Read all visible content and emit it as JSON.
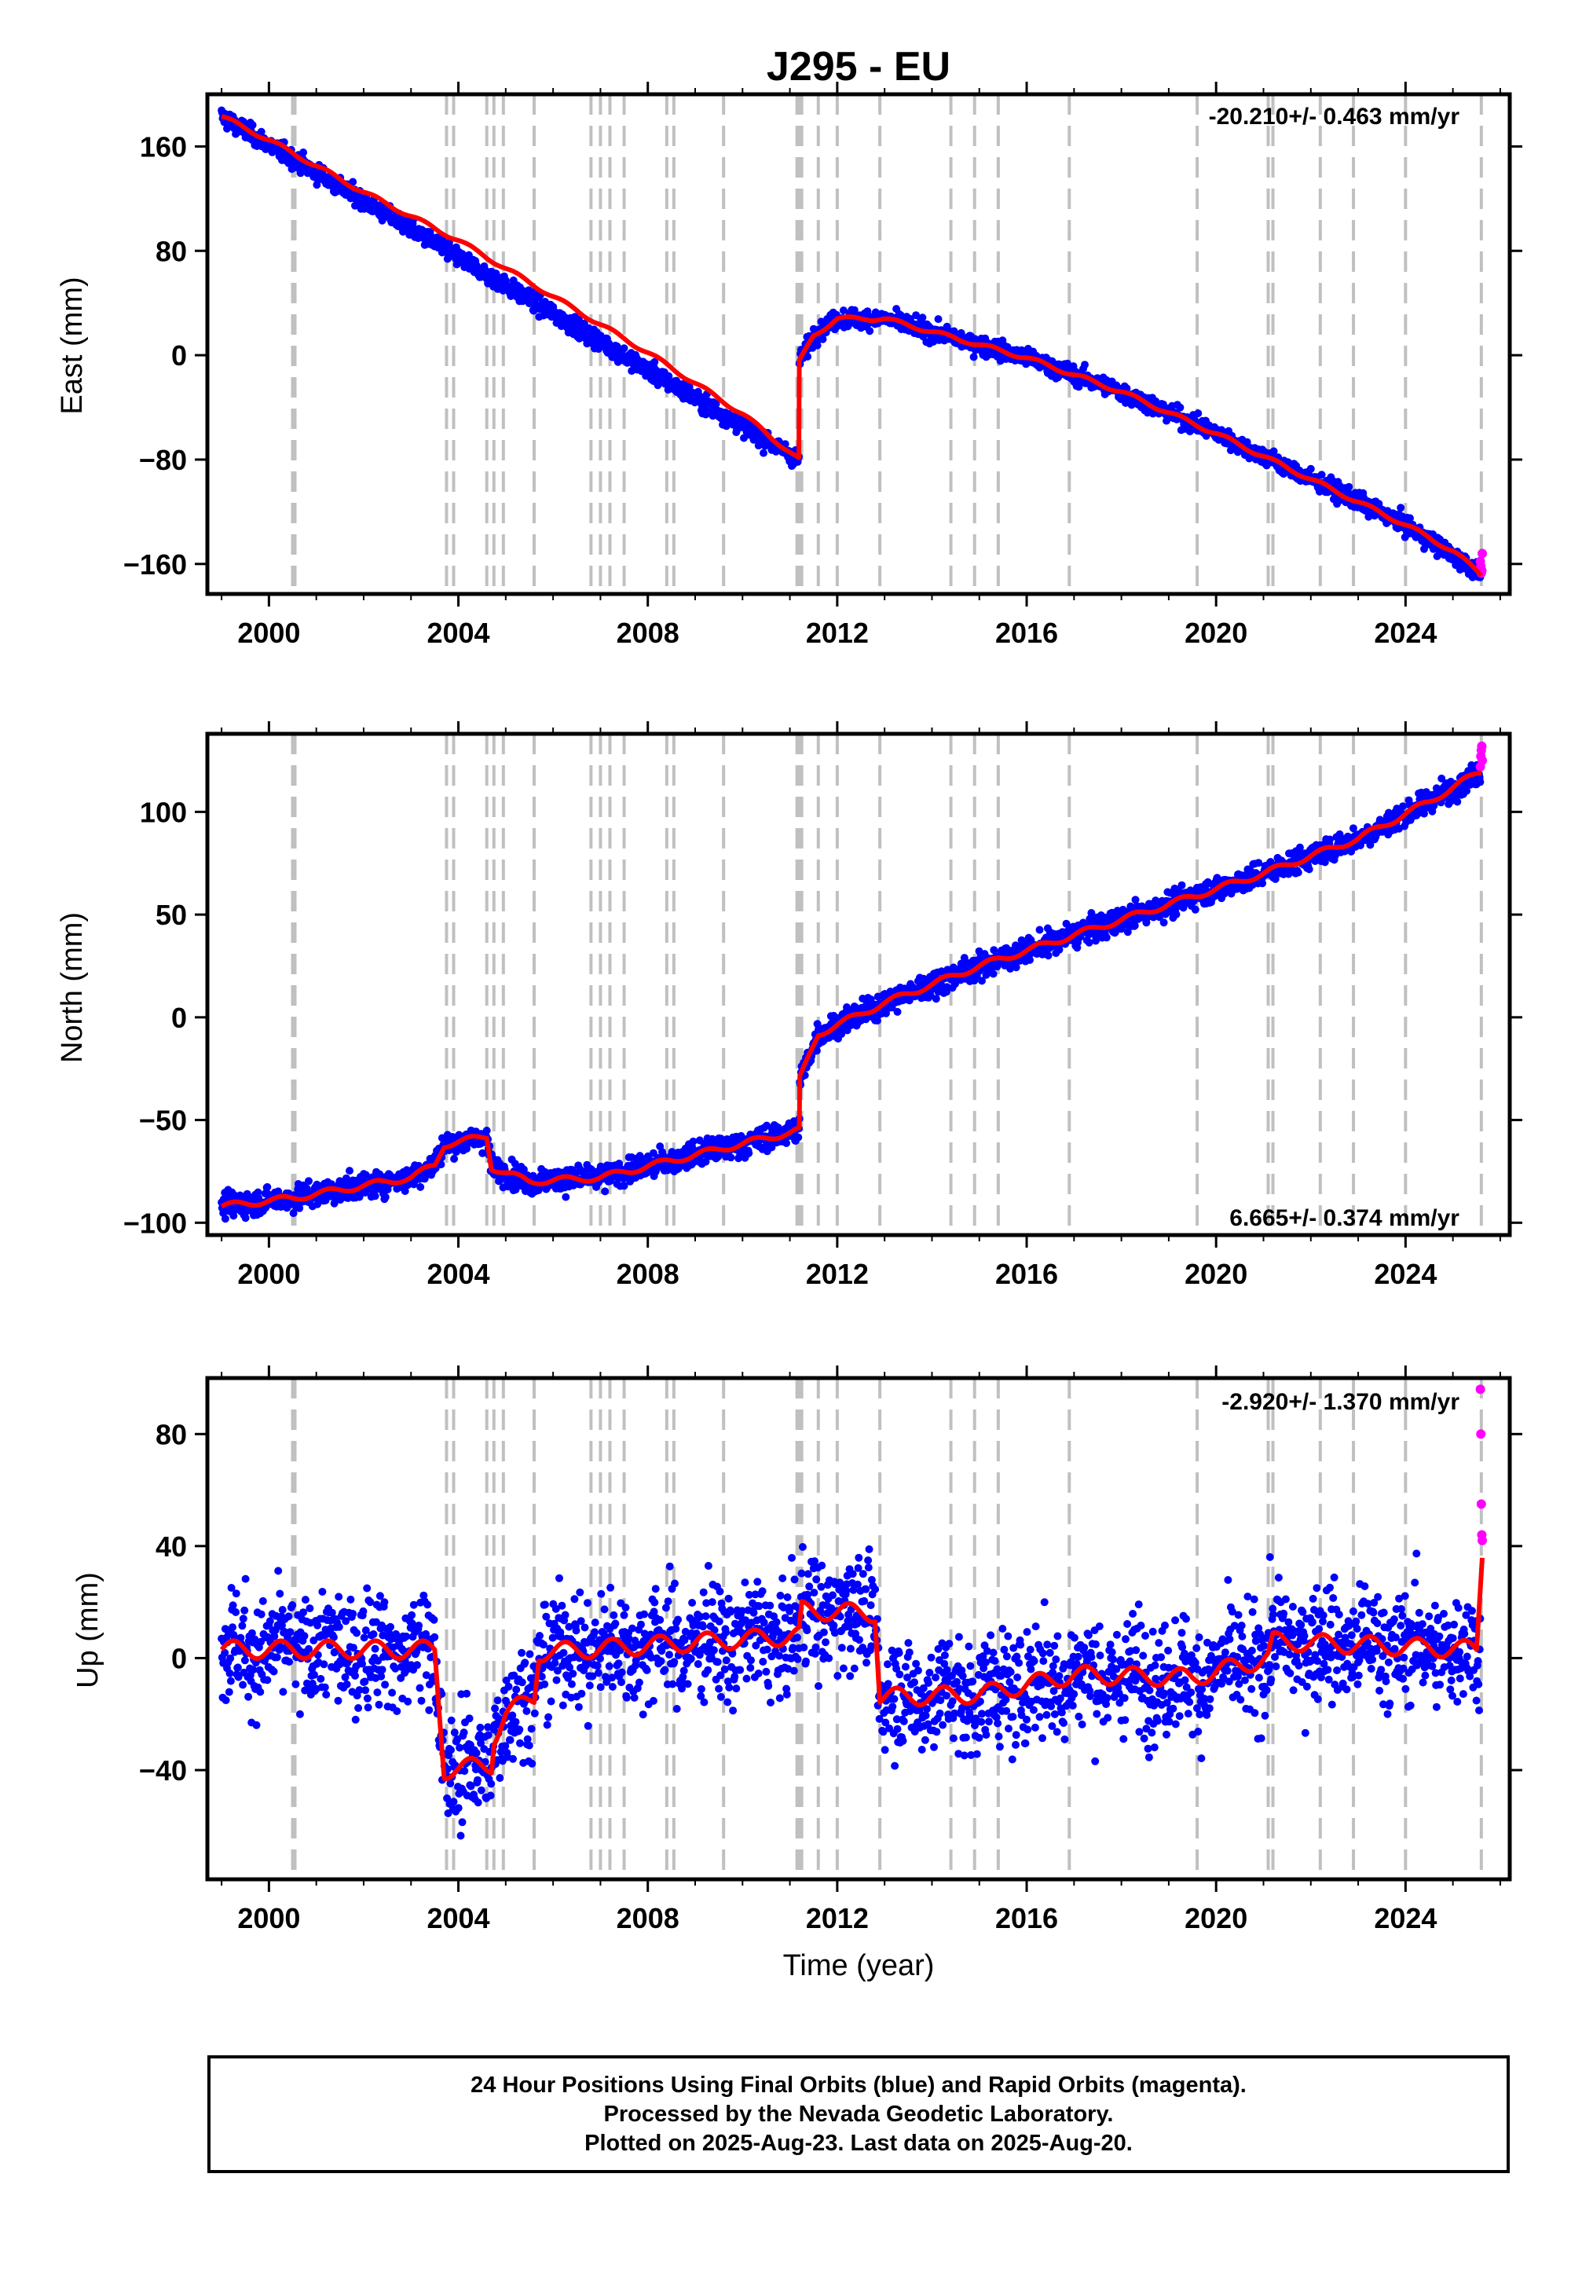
{
  "figure": {
    "title": "J295 - EU",
    "caption": [
      "24 Hour Positions Using Final Orbits (blue) and Rapid Orbits (magenta).",
      "Processed by the Nevada Geodetic Laboratory.",
      "Plotted on 2025-Aug-23. Last data on 2025-Aug-20."
    ]
  },
  "colors": {
    "final_orbits": "#0000ff",
    "rapid_orbits": "#ff00ff",
    "model_fit": "#ff0000",
    "event_lines": "#c0c0c0"
  },
  "chart_data": [
    {
      "type": "scatter",
      "ylabel": "East (mm)",
      "xlabel": "",
      "xlim": [
        1998.7,
        2026.2
      ],
      "ylim": [
        -183,
        200
      ],
      "xticks": [
        2000,
        2004,
        2008,
        2012,
        2016,
        2020,
        2024
      ],
      "yticks": [
        -160,
        -80,
        0,
        80,
        160
      ],
      "ytick_labels": [
        "−160",
        "−80",
        "0",
        "80",
        "160"
      ],
      "rate_label": "-20.210+/- 0.463 mm/yr",
      "rate_position": "top-right",
      "model": [
        [
          1999.0,
          183
        ],
        [
          2000.0,
          165
        ],
        [
          2002.0,
          125
        ],
        [
          2004.0,
          88
        ],
        [
          2006.0,
          45
        ],
        [
          2008.0,
          2
        ],
        [
          2010.0,
          -45
        ],
        [
          2011.19,
          -80
        ],
        [
          2011.2,
          -5
        ],
        [
          2011.5,
          15
        ],
        [
          2012.0,
          28
        ],
        [
          2013.0,
          28
        ],
        [
          2014.0,
          18
        ],
        [
          2016.0,
          -2
        ],
        [
          2018.0,
          -28
        ],
        [
          2020.0,
          -60
        ],
        [
          2022.0,
          -95
        ],
        [
          2024.0,
          -130
        ],
        [
          2025.0,
          -150
        ],
        [
          2025.6,
          -168
        ]
      ],
      "final_series": [
        [
          1999.0,
          183
        ],
        [
          2011.19,
          -80
        ],
        [
          2011.2,
          -5
        ],
        [
          2011.5,
          15
        ],
        [
          2012.0,
          28
        ],
        [
          2013.0,
          28
        ],
        [
          2014.0,
          18
        ],
        [
          2016.0,
          -2
        ],
        [
          2018.0,
          -28
        ],
        [
          2020.0,
          -60
        ],
        [
          2022.0,
          -95
        ],
        [
          2024.0,
          -130
        ],
        [
          2025.6,
          -168
        ]
      ],
      "noise_mm": 3.5,
      "rapid_points": [
        [
          2025.58,
          -158
        ],
        [
          2025.59,
          -162
        ],
        [
          2025.6,
          -167
        ],
        [
          2025.61,
          -165
        ],
        [
          2025.62,
          -152
        ]
      ]
    },
    {
      "type": "scatter",
      "ylabel": "North (mm)",
      "xlabel": "",
      "xlim": [
        1998.7,
        2026.2
      ],
      "ylim": [
        -106,
        138
      ],
      "xticks": [
        2000,
        2004,
        2008,
        2012,
        2016,
        2020,
        2024
      ],
      "yticks": [
        -100,
        -50,
        0,
        50,
        100
      ],
      "ytick_labels": [
        "−100",
        "−50",
        "0",
        "50",
        "100"
      ],
      "rate_label": "6.665+/- 0.374 mm/yr",
      "rate_position": "bottom-right",
      "model": [
        [
          1999.0,
          -92
        ],
        [
          2000.5,
          -88
        ],
        [
          2001.5,
          -84
        ],
        [
          2003.0,
          -78
        ],
        [
          2003.5,
          -72
        ],
        [
          2003.7,
          -62
        ],
        [
          2004.6,
          -58
        ],
        [
          2004.7,
          -73
        ],
        [
          2005.5,
          -80
        ],
        [
          2007.0,
          -78
        ],
        [
          2009.0,
          -67
        ],
        [
          2011.2,
          -55
        ],
        [
          2011.21,
          -30
        ],
        [
          2011.6,
          -8
        ],
        [
          2013.0,
          7
        ],
        [
          2015.0,
          25
        ],
        [
          2017.0,
          40
        ],
        [
          2019.0,
          55
        ],
        [
          2021.0,
          70
        ],
        [
          2023.0,
          87
        ],
        [
          2024.5,
          105
        ],
        [
          2025.6,
          120
        ]
      ],
      "final_series": [
        [
          1999.0,
          -92
        ],
        [
          2000.5,
          -88
        ],
        [
          2001.5,
          -84
        ],
        [
          2003.0,
          -78
        ],
        [
          2003.5,
          -72
        ],
        [
          2003.7,
          -62
        ],
        [
          2004.6,
          -58
        ],
        [
          2004.7,
          -73
        ],
        [
          2005.5,
          -80
        ],
        [
          2007.0,
          -78
        ],
        [
          2009.0,
          -67
        ],
        [
          2011.2,
          -55
        ],
        [
          2011.21,
          -30
        ],
        [
          2011.6,
          -8
        ],
        [
          2013.0,
          7
        ],
        [
          2015.0,
          25
        ],
        [
          2017.0,
          40
        ],
        [
          2019.0,
          55
        ],
        [
          2021.0,
          70
        ],
        [
          2023.0,
          87
        ],
        [
          2024.5,
          105
        ],
        [
          2025.6,
          120
        ]
      ],
      "noise_mm": 3,
      "rapid_points": [
        [
          2025.58,
          122
        ],
        [
          2025.59,
          127
        ],
        [
          2025.6,
          130
        ],
        [
          2025.61,
          132
        ],
        [
          2025.62,
          125
        ]
      ]
    },
    {
      "type": "scatter",
      "ylabel": "Up (mm)",
      "xlabel": "Time (year)",
      "xlim": [
        1998.7,
        2026.2
      ],
      "ylim": [
        -79,
        100
      ],
      "xticks": [
        2000,
        2004,
        2008,
        2012,
        2016,
        2020,
        2024
      ],
      "yticks": [
        -40,
        0,
        40,
        80
      ],
      "ytick_labels": [
        "−40",
        "0",
        "40",
        "80"
      ],
      "rate_label": "-2.920+/- 1.370 mm/yr",
      "rate_position": "top-right",
      "model": [
        [
          1999.0,
          3
        ],
        [
          2003.5,
          3
        ],
        [
          2003.7,
          -40
        ],
        [
          2004.7,
          -38
        ],
        [
          2004.75,
          -28
        ],
        [
          2005.0,
          -20
        ],
        [
          2005.6,
          -14
        ],
        [
          2005.7,
          2
        ],
        [
          2011.2,
          8
        ],
        [
          2011.25,
          17
        ],
        [
          2012.8,
          16
        ],
        [
          2012.9,
          -14
        ],
        [
          2015.0,
          -13
        ],
        [
          2017.0,
          -6
        ],
        [
          2019.5,
          -7
        ],
        [
          2021.1,
          0
        ],
        [
          2021.2,
          6
        ],
        [
          2025.5,
          3
        ],
        [
          2025.62,
          38
        ]
      ],
      "final_series": [
        [
          1999.0,
          3
        ],
        [
          2003.5,
          3
        ],
        [
          2003.7,
          -40
        ],
        [
          2004.7,
          -38
        ],
        [
          2004.75,
          -28
        ],
        [
          2005.0,
          -20
        ],
        [
          2005.6,
          -14
        ],
        [
          2005.7,
          2
        ],
        [
          2011.2,
          8
        ],
        [
          2011.25,
          17
        ],
        [
          2012.8,
          16
        ],
        [
          2012.9,
          -14
        ],
        [
          2015.0,
          -13
        ],
        [
          2017.0,
          -6
        ],
        [
          2019.5,
          -7
        ],
        [
          2021.1,
          0
        ],
        [
          2021.2,
          6
        ],
        [
          2025.5,
          3
        ]
      ],
      "noise_mm": 10,
      "rapid_points": [
        [
          2025.58,
          96
        ],
        [
          2025.59,
          80
        ],
        [
          2025.6,
          55
        ],
        [
          2025.61,
          44
        ],
        [
          2025.62,
          42
        ]
      ]
    }
  ],
  "event_lines_years": [
    2000.5,
    2000.55,
    2003.75,
    2003.9,
    2004.6,
    2004.75,
    2004.95,
    2005.6,
    2006.8,
    2007.0,
    2007.2,
    2007.5,
    2008.4,
    2008.55,
    2009.6,
    2011.15,
    2011.2,
    2011.25,
    2011.6,
    2012.0,
    2012.9,
    2014.4,
    2014.9,
    2015.4,
    2016.9,
    2019.6,
    2021.1,
    2021.2,
    2022.2,
    2022.9,
    2024.0,
    2025.6
  ]
}
